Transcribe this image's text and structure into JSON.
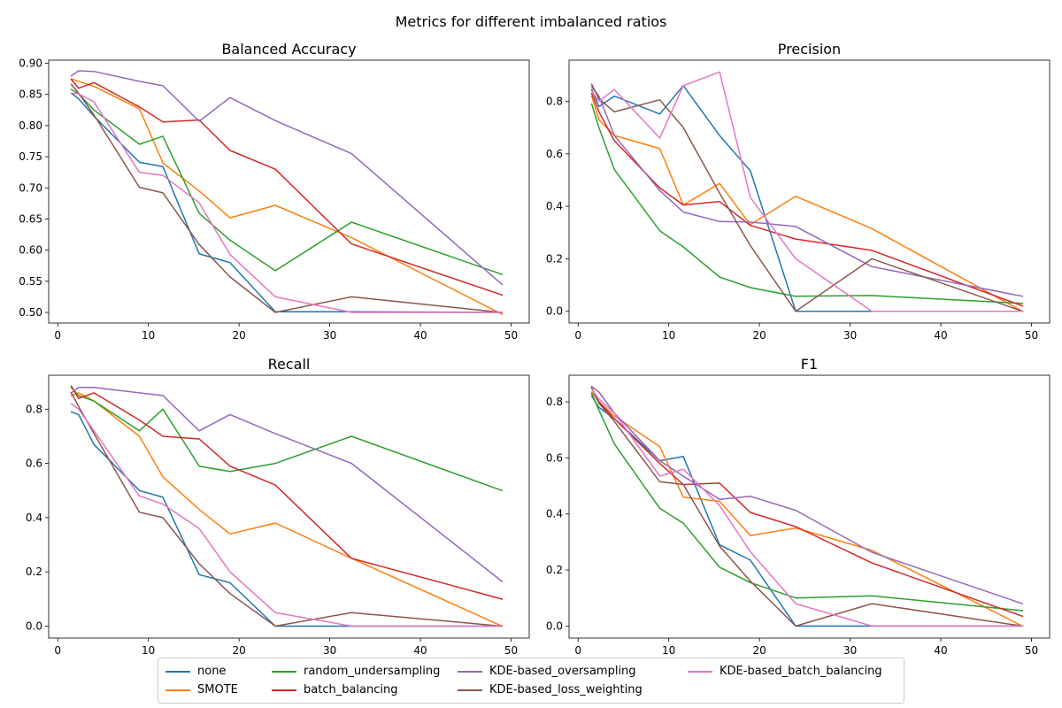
{
  "suptitle": "Metrics for different imbalanced ratios",
  "legend": [
    {
      "name": "none",
      "color": "#1f77b4"
    },
    {
      "name": "SMOTE",
      "color": "#ff7f0e"
    },
    {
      "name": "random_undersampling",
      "color": "#2ca02c"
    },
    {
      "name": "batch_balancing",
      "color": "#d62728"
    },
    {
      "name": "KDE-based_oversampling",
      "color": "#9467bd"
    },
    {
      "name": "KDE-based_loss_weighting",
      "color": "#8c564b"
    },
    {
      "name": "KDE-based_batch_balancing",
      "color": "#e377c2"
    }
  ],
  "chart_data": [
    {
      "type": "line",
      "title": "Balanced Accuracy",
      "xlim": [
        -1,
        52
      ],
      "ylim": [
        0.483,
        0.905
      ],
      "xticks": [
        0,
        10,
        20,
        30,
        40,
        50
      ],
      "yticks": [
        "0.50",
        "0.55",
        "0.60",
        "0.65",
        "0.70",
        "0.75",
        "0.80",
        "0.85",
        "0.90"
      ],
      "x": [
        1.5,
        2.3,
        4,
        9,
        11.6,
        15.6,
        19,
        24,
        32.4,
        49
      ],
      "series": [
        {
          "name": "none",
          "color": "#1f77b4",
          "values": [
            0.852,
            0.843,
            0.815,
            0.741,
            0.734,
            0.594,
            0.58,
            0.501,
            0.501,
            0.5
          ]
        },
        {
          "name": "SMOTE",
          "color": "#ff7f0e",
          "values": [
            0.875,
            0.871,
            0.863,
            0.827,
            0.74,
            0.695,
            0.652,
            0.672,
            0.62,
            0.497
          ]
        },
        {
          "name": "random_undersampling",
          "color": "#2ca02c",
          "values": [
            0.858,
            0.851,
            0.825,
            0.77,
            0.783,
            0.659,
            0.616,
            0.567,
            0.645,
            0.561
          ]
        },
        {
          "name": "batch_balancing",
          "color": "#d62728",
          "values": [
            0.874,
            0.86,
            0.869,
            0.83,
            0.806,
            0.809,
            0.76,
            0.73,
            0.61,
            0.528
          ]
        },
        {
          "name": "KDE-based_oversampling",
          "color": "#9467bd",
          "values": [
            0.88,
            0.888,
            0.887,
            0.871,
            0.864,
            0.807,
            0.845,
            0.808,
            0.755,
            0.545
          ]
        },
        {
          "name": "KDE-based_loss_weighting",
          "color": "#8c564b",
          "values": [
            0.866,
            0.852,
            0.817,
            0.701,
            0.692,
            0.609,
            0.557,
            0.5,
            0.525,
            0.5
          ]
        },
        {
          "name": "KDE-based_batch_balancing",
          "color": "#e377c2",
          "values": [
            0.852,
            0.851,
            0.838,
            0.725,
            0.72,
            0.676,
            0.593,
            0.525,
            0.5,
            0.5
          ]
        }
      ]
    },
    {
      "type": "line",
      "title": "Precision",
      "xlim": [
        -1,
        52
      ],
      "ylim": [
        -0.045,
        0.957
      ],
      "xticks": [
        0,
        10,
        20,
        30,
        40,
        50
      ],
      "yticks": [
        "0.0",
        "0.2",
        "0.4",
        "0.6",
        "0.8"
      ],
      "x": [
        1.5,
        2.3,
        4,
        9,
        11.6,
        15.6,
        19,
        24,
        32.4,
        49
      ],
      "series": [
        {
          "name": "none",
          "color": "#1f77b4",
          "values": [
            0.845,
            0.78,
            0.82,
            0.752,
            0.86,
            0.67,
            0.535,
            0.0,
            0.0,
            0.0
          ]
        },
        {
          "name": "SMOTE",
          "color": "#ff7f0e",
          "values": [
            0.82,
            0.73,
            0.67,
            0.62,
            0.405,
            0.487,
            0.33,
            0.438,
            0.315,
            0.0
          ]
        },
        {
          "name": "random_undersampling",
          "color": "#2ca02c",
          "values": [
            0.79,
            0.7,
            0.54,
            0.307,
            0.245,
            0.13,
            0.09,
            0.057,
            0.06,
            0.03
          ]
        },
        {
          "name": "batch_balancing",
          "color": "#d62728",
          "values": [
            0.83,
            0.76,
            0.65,
            0.47,
            0.405,
            0.418,
            0.327,
            0.275,
            0.232,
            0.02
          ]
        },
        {
          "name": "KDE-based_oversampling",
          "color": "#9467bd",
          "values": [
            0.855,
            0.82,
            0.67,
            0.46,
            0.378,
            0.342,
            0.34,
            0.323,
            0.17,
            0.057
          ]
        },
        {
          "name": "KDE-based_loss_weighting",
          "color": "#8c564b",
          "values": [
            0.865,
            0.81,
            0.76,
            0.806,
            0.7,
            0.45,
            0.25,
            0.0,
            0.2,
            0.0
          ]
        },
        {
          "name": "KDE-based_batch_balancing",
          "color": "#e377c2",
          "values": [
            0.84,
            0.8,
            0.845,
            0.66,
            0.86,
            0.912,
            0.433,
            0.2,
            0.0,
            0.0
          ]
        }
      ]
    },
    {
      "type": "line",
      "title": "Recall",
      "xlim": [
        -1,
        52
      ],
      "ylim": [
        -0.044,
        0.925
      ],
      "xticks": [
        0,
        10,
        20,
        30,
        40,
        50
      ],
      "yticks": [
        "0.0",
        "0.2",
        "0.4",
        "0.6",
        "0.8"
      ],
      "x": [
        1.5,
        2.3,
        4,
        9,
        11.6,
        15.6,
        19,
        24,
        32.4,
        49
      ],
      "series": [
        {
          "name": "none",
          "color": "#1f77b4",
          "values": [
            0.79,
            0.78,
            0.67,
            0.5,
            0.475,
            0.19,
            0.16,
            0.0,
            0.0,
            0.0
          ]
        },
        {
          "name": "SMOTE",
          "color": "#ff7f0e",
          "values": [
            0.85,
            0.86,
            0.83,
            0.7,
            0.55,
            0.43,
            0.34,
            0.38,
            0.25,
            0.0
          ]
        },
        {
          "name": "random_undersampling",
          "color": "#2ca02c",
          "values": [
            0.88,
            0.85,
            0.83,
            0.72,
            0.8,
            0.59,
            0.57,
            0.6,
            0.7,
            0.5
          ]
        },
        {
          "name": "batch_balancing",
          "color": "#d62728",
          "values": [
            0.885,
            0.84,
            0.86,
            0.76,
            0.7,
            0.69,
            0.59,
            0.52,
            0.25,
            0.1
          ]
        },
        {
          "name": "KDE-based_oversampling",
          "color": "#9467bd",
          "values": [
            0.86,
            0.88,
            0.88,
            0.86,
            0.85,
            0.72,
            0.78,
            0.71,
            0.6,
            0.165
          ]
        },
        {
          "name": "KDE-based_loss_weighting",
          "color": "#8c564b",
          "values": [
            0.86,
            0.81,
            0.71,
            0.42,
            0.4,
            0.23,
            0.12,
            0.0,
            0.05,
            0.0
          ]
        },
        {
          "name": "KDE-based_batch_balancing",
          "color": "#e377c2",
          "values": [
            0.82,
            0.8,
            0.72,
            0.48,
            0.45,
            0.36,
            0.2,
            0.05,
            0.0,
            0.0
          ]
        }
      ]
    },
    {
      "type": "line",
      "title": "F1",
      "xlim": [
        -1,
        52
      ],
      "ylim": [
        -0.043,
        0.895
      ],
      "xticks": [
        0,
        10,
        20,
        30,
        40,
        50
      ],
      "yticks": [
        "0.0",
        "0.2",
        "0.4",
        "0.6",
        "0.8"
      ],
      "x": [
        1.5,
        2.3,
        4,
        9,
        11.6,
        15.6,
        19,
        24,
        32.4,
        49
      ],
      "series": [
        {
          "name": "none",
          "color": "#1f77b4",
          "values": [
            0.82,
            0.78,
            0.74,
            0.59,
            0.605,
            0.29,
            0.235,
            0.0,
            0.0,
            0.0
          ]
        },
        {
          "name": "SMOTE",
          "color": "#ff7f0e",
          "values": [
            0.835,
            0.8,
            0.75,
            0.64,
            0.46,
            0.445,
            0.323,
            0.35,
            0.27,
            0.0
          ]
        },
        {
          "name": "random_undersampling",
          "color": "#2ca02c",
          "values": [
            0.83,
            0.77,
            0.65,
            0.42,
            0.367,
            0.21,
            0.155,
            0.1,
            0.108,
            0.055
          ]
        },
        {
          "name": "batch_balancing",
          "color": "#d62728",
          "values": [
            0.85,
            0.8,
            0.74,
            0.58,
            0.505,
            0.51,
            0.405,
            0.355,
            0.225,
            0.035
          ]
        },
        {
          "name": "KDE-based_oversampling",
          "color": "#9467bd",
          "values": [
            0.855,
            0.835,
            0.76,
            0.59,
            0.535,
            0.452,
            0.463,
            0.413,
            0.263,
            0.08
          ]
        },
        {
          "name": "KDE-based_loss_weighting",
          "color": "#8c564b",
          "values": [
            0.85,
            0.795,
            0.73,
            0.515,
            0.505,
            0.285,
            0.16,
            0.0,
            0.08,
            0.0
          ]
        },
        {
          "name": "KDE-based_batch_balancing",
          "color": "#e377c2",
          "values": [
            0.845,
            0.81,
            0.76,
            0.535,
            0.56,
            0.43,
            0.265,
            0.08,
            0.0,
            0.0
          ]
        }
      ]
    }
  ]
}
